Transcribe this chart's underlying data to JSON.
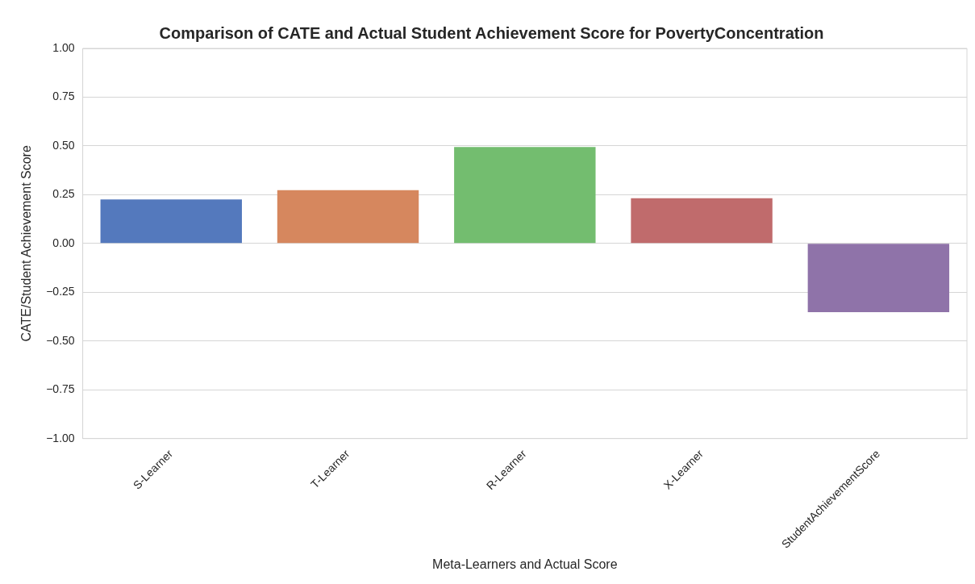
{
  "chart_data": {
    "type": "bar",
    "title": "Comparison of CATE and Actual Student Achievement Score for PovertyConcentration",
    "xlabel": "Meta-Learners and Actual Score",
    "ylabel": "CATE/Student Achievement Score",
    "categories": [
      "S-Learner",
      "T-Learner",
      "R-Learner",
      "X-Learner",
      "StudentAchievementScore"
    ],
    "values": [
      0.226,
      0.273,
      0.495,
      0.232,
      -0.352
    ],
    "colors": [
      "#5479bd",
      "#d6875e",
      "#73bd6f",
      "#c06b6c",
      "#8f73a9"
    ],
    "ylim": [
      -1,
      1
    ],
    "yticks": [
      {
        "value": -1,
        "label": "−1.00"
      },
      {
        "value": -0.75,
        "label": "−0.75"
      },
      {
        "value": -0.5,
        "label": "−0.50"
      },
      {
        "value": -0.25,
        "label": "−0.25"
      },
      {
        "value": 0,
        "label": "0.00"
      },
      {
        "value": 0.25,
        "label": "0.25"
      },
      {
        "value": 0.5,
        "label": "0.50"
      },
      {
        "value": 0.75,
        "label": "0.75"
      },
      {
        "value": 1,
        "label": "1.00"
      }
    ],
    "grid": "y"
  }
}
